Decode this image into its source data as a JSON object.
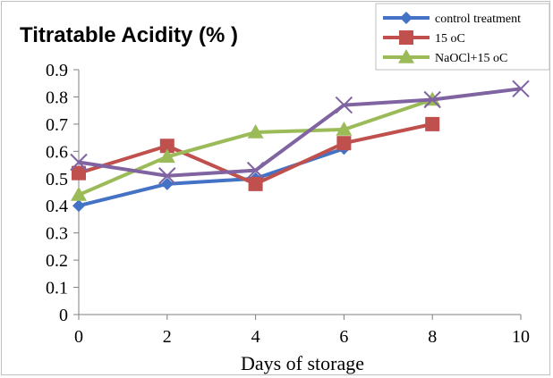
{
  "chart_data": {
    "type": "line",
    "title": "Titratable Acidity (% )",
    "xlabel": "Days of storage",
    "ylabel": "",
    "xlim": [
      0,
      10
    ],
    "ylim": [
      0,
      0.9
    ],
    "x_ticks": [
      "0",
      "2",
      "4",
      "6",
      "8",
      "10"
    ],
    "y_ticks": [
      "0",
      "0.1",
      "0.2",
      "0.3",
      "0.4",
      "0.5",
      "0.6",
      "0.7",
      "0.8",
      "0.9"
    ],
    "grid": false,
    "legend_position": "top-right",
    "series": [
      {
        "name": "control treatment",
        "color": "#4472C4",
        "marker": "diamond",
        "x": [
          0,
          2,
          4,
          6
        ],
        "values": [
          0.4,
          0.48,
          0.5,
          0.61
        ]
      },
      {
        "name": "15 oC",
        "color": "#C0504D",
        "marker": "square",
        "x": [
          0,
          2,
          4,
          6,
          8
        ],
        "values": [
          0.52,
          0.62,
          0.48,
          0.63,
          0.7
        ]
      },
      {
        "name": "NaOCl+15 oC",
        "color": "#9BBB59",
        "marker": "triangle",
        "x": [
          0,
          2,
          4,
          6,
          8
        ],
        "values": [
          0.44,
          0.58,
          0.67,
          0.68,
          0.79
        ]
      },
      {
        "name": "",
        "color": "#8064A2",
        "marker": "x",
        "x": [
          0,
          2,
          4,
          6,
          8,
          10
        ],
        "values": [
          0.56,
          0.51,
          0.53,
          0.77,
          0.79,
          0.83
        ]
      }
    ]
  }
}
